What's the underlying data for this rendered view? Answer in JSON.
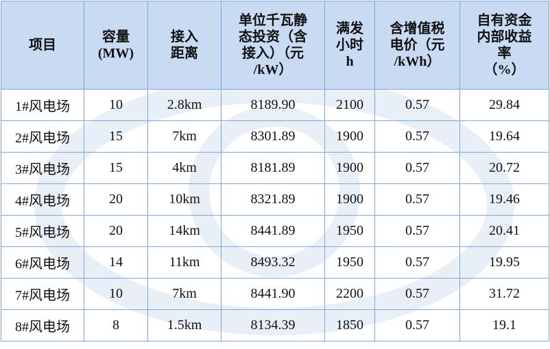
{
  "table": {
    "header": [
      [
        "项目"
      ],
      [
        "容量",
        "(MW)"
      ],
      [
        "接入",
        "距离"
      ],
      [
        "单位千瓦静",
        "态投资（含",
        "接入）（元",
        "/kW）"
      ],
      [
        "满发",
        "小时",
        "h"
      ],
      [
        "含增值税",
        "电价（元",
        "/kWh）"
      ],
      [
        "自有资金",
        "内部收益",
        "率",
        "（%）"
      ]
    ],
    "rows": [
      [
        "1#风电场",
        "10",
        "2.8km",
        "8189.90",
        "2100",
        "0.57",
        "29.84"
      ],
      [
        "2#风电场",
        "15",
        "7km",
        "8301.89",
        "1900",
        "0.57",
        "19.64"
      ],
      [
        "3#风电场",
        "15",
        "4km",
        "8181.89",
        "1900",
        "0.57",
        "20.72"
      ],
      [
        "4#风电场",
        "20",
        "10km",
        "8321.89",
        "1900",
        "0.57",
        "19.46"
      ],
      [
        "5#风电场",
        "20",
        "14km",
        "8441.89",
        "1950",
        "0.57",
        "20.41"
      ],
      [
        "6#风电场",
        "14",
        "11km",
        "8493.32",
        "1950",
        "0.57",
        "19.95"
      ],
      [
        "7#风电场",
        "10",
        "7km",
        "8441.90",
        "2200",
        "0.57",
        "31.72"
      ],
      [
        "8#风电场",
        "8",
        "1.5km",
        "8134.39",
        "1850",
        "0.57",
        "19.1"
      ]
    ]
  }
}
